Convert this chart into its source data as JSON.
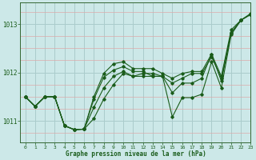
{
  "title": "Graphe pression niveau de la mer (hPa)",
  "bg_color": "#cce8e8",
  "line_color": "#1a5c1a",
  "xlim": [
    -0.5,
    23
  ],
  "ylim": [
    1010.55,
    1013.45
  ],
  "yticks": [
    1011,
    1012,
    1013
  ],
  "xticks": [
    0,
    1,
    2,
    3,
    4,
    5,
    6,
    7,
    8,
    9,
    10,
    11,
    12,
    13,
    14,
    15,
    16,
    17,
    18,
    19,
    20,
    21,
    22,
    23
  ],
  "major_grid_color": "#aacccc",
  "minor_grid_h_color": "#ddaaaa",
  "minor_grid_v_color": "#bbdddd",
  "series": [
    [
      1011.5,
      1011.3,
      1011.5,
      1011.5,
      1010.9,
      1010.82,
      1010.83,
      1011.05,
      1011.45,
      1011.75,
      1011.98,
      1011.92,
      1011.98,
      1011.98,
      1011.92,
      1011.08,
      1011.48,
      1011.48,
      1011.55,
      1012.22,
      1011.68,
      1012.78,
      1013.08,
      1013.2
    ],
    [
      1011.5,
      1011.3,
      1011.5,
      1011.5,
      1010.9,
      1010.82,
      1010.83,
      1011.28,
      1011.68,
      1011.92,
      1012.02,
      1011.92,
      1011.92,
      1011.92,
      1011.92,
      1011.58,
      1011.78,
      1011.78,
      1011.88,
      1012.38,
      1011.82,
      1012.82,
      1013.08,
      1013.2
    ],
    [
      1011.5,
      1011.3,
      1011.5,
      1011.5,
      1010.9,
      1010.82,
      1010.83,
      1011.45,
      1011.9,
      1012.05,
      1012.12,
      1012.02,
      1012.02,
      1011.92,
      1011.92,
      1011.78,
      1011.88,
      1011.98,
      1011.98,
      1012.32,
      1011.88,
      1012.82,
      1013.08,
      1013.2
    ],
    [
      1011.5,
      1011.3,
      1011.5,
      1011.5,
      1010.9,
      1010.82,
      1010.83,
      1011.5,
      1011.98,
      1012.18,
      1012.22,
      1012.08,
      1012.08,
      1012.08,
      1011.98,
      1011.88,
      1011.98,
      1012.02,
      1012.02,
      1012.38,
      1011.92,
      1012.88,
      1013.08,
      1013.22
    ]
  ]
}
